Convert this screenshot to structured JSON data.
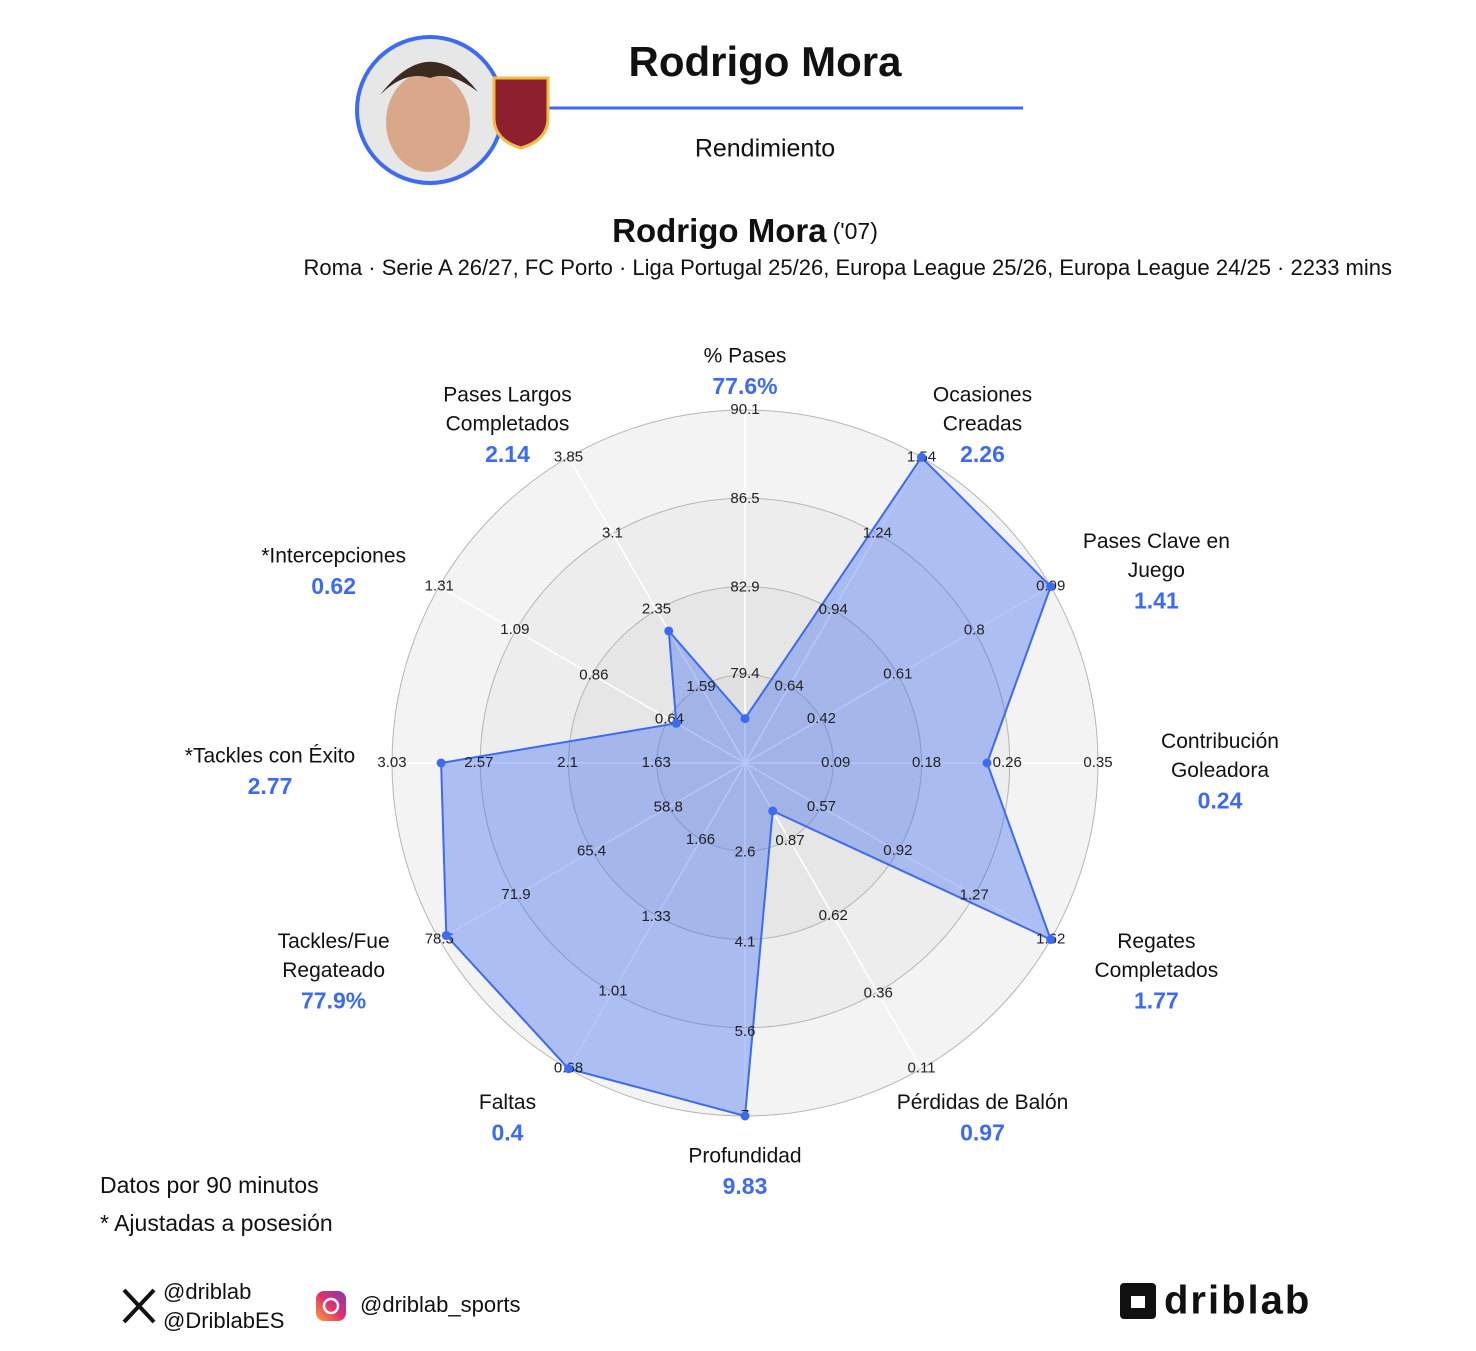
{
  "header": {
    "title": "Rodrigo Mora",
    "subtitle": "Rendimiento"
  },
  "chart_data": {
    "type": "radar",
    "title": "Rodrigo Mora",
    "title_suffix": "('07)",
    "subtitle": "Roma · Serie A 26/27, FC Porto · Liga Portugal 25/26, Europa League 25/26, Europa League 24/25 · 2233 mins",
    "color": "#3d6af2",
    "axes": [
      {
        "name": [
          "% Pases"
        ],
        "value": 77.6,
        "value_label": "77.6%",
        "rlim": [
          75.8,
          90.1
        ],
        "ticks": [
          79.4,
          82.9,
          86.5,
          90.1
        ]
      },
      {
        "name": [
          "Ocasiones",
          "Creadas"
        ],
        "value": 2.26,
        "rlim": [
          0.34,
          1.54
        ],
        "ticks": [
          0.64,
          0.94,
          1.24,
          1.54
        ]
      },
      {
        "name": [
          "Pases Clave en",
          "Juego"
        ],
        "value": 1.41,
        "rlim": [
          0.23,
          0.99
        ],
        "ticks": [
          0.42,
          0.61,
          0.8,
          0.99
        ]
      },
      {
        "name": [
          "Contribución",
          "Goleadora"
        ],
        "value": 0.24,
        "rlim": [
          0,
          0.35
        ],
        "ticks": [
          0.09,
          0.18,
          0.26,
          0.35
        ]
      },
      {
        "name": [
          "Regates",
          "Completados"
        ],
        "value": 1.77,
        "rlim": [
          0.22,
          1.62
        ],
        "ticks": [
          0.57,
          0.92,
          1.27,
          1.62
        ]
      },
      {
        "name": [
          "Pérdidas de Balón"
        ],
        "value": 0.97,
        "rlim": [
          1.13,
          0.11
        ],
        "ticks": [
          0.87,
          0.62,
          0.36,
          0.11
        ]
      },
      {
        "name": [
          "Profundidad"
        ],
        "value": 9.83,
        "rlim": [
          1.1,
          7
        ],
        "ticks": [
          2.6,
          4.1,
          5.6,
          7
        ]
      },
      {
        "name": [
          "Faltas"
        ],
        "value": 0.4,
        "rlim": [
          1.99,
          0.68
        ],
        "ticks": [
          1.66,
          1.33,
          1.01,
          0.68
        ]
      },
      {
        "name": [
          "Tackles/Fue",
          "Regateado"
        ],
        "value": 77.9,
        "value_label": "77.9%",
        "rlim": [
          52.2,
          78.5
        ],
        "ticks": [
          58.8,
          65.4,
          71.9,
          78.5
        ]
      },
      {
        "name": [
          "*Tackles con Éxito"
        ],
        "value": 2.77,
        "rlim": [
          1.16,
          3.03
        ],
        "ticks": [
          1.63,
          2.1,
          2.57,
          3.03
        ]
      },
      {
        "name": [
          "*Intercepciones"
        ],
        "value": 0.62,
        "rlim": [
          0.42,
          1.31
        ],
        "ticks": [
          0.64,
          0.86,
          1.09,
          1.31
        ]
      },
      {
        "name": [
          "Pases Largos",
          "Completados"
        ],
        "value": 2.14,
        "rlim": [
          0.84,
          3.85
        ],
        "ticks": [
          1.59,
          2.35,
          3.1,
          3.85
        ]
      }
    ]
  },
  "notes": [
    "Datos por 90 minutos",
    "* Ajustadas a posesión"
  ],
  "footer": {
    "x_handles": [
      "@driblab",
      "@DriblabES"
    ],
    "instagram": "@driblab_sports",
    "logo": "driblab"
  }
}
